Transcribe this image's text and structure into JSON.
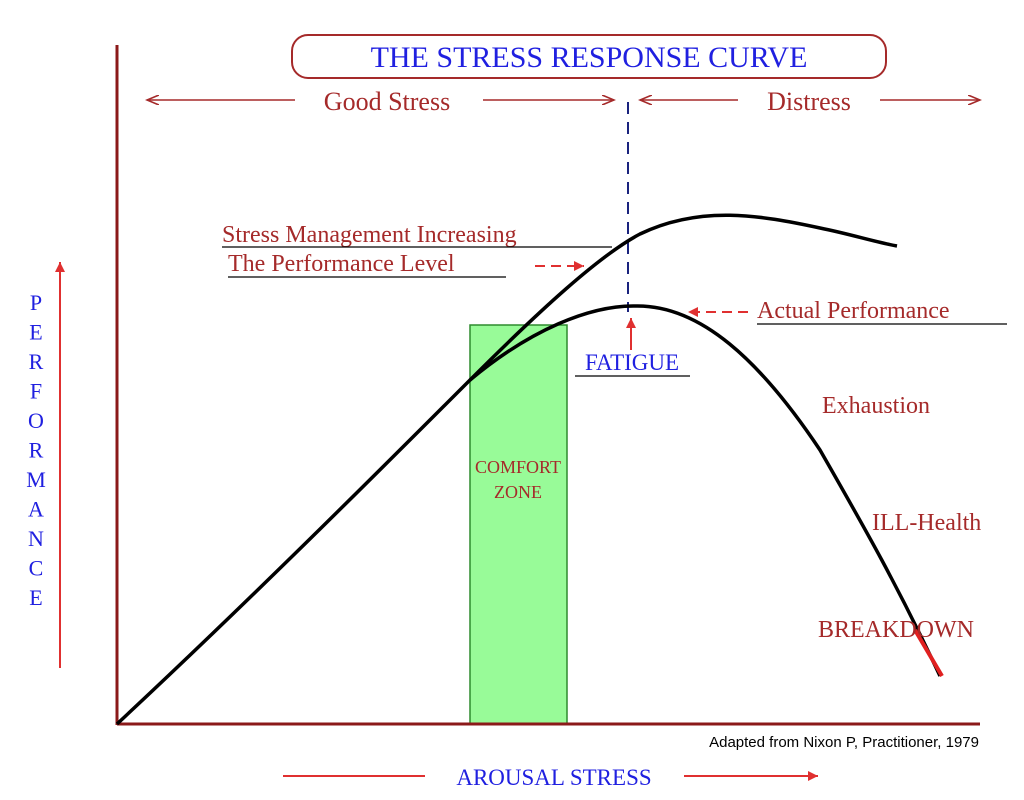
{
  "title": "THE STRESS RESPONSE CURVE",
  "zones": {
    "good_stress": "Good Stress",
    "distress": "Distress"
  },
  "y_axis_label": "PERFORMANCE",
  "x_axis_label": "AROUSAL STRESS",
  "labels": {
    "stress_management_line1": "Stress Management Increasing",
    "stress_management_line2": "The Performance Level",
    "actual_performance": "Actual Performance",
    "fatigue": "FATIGUE",
    "exhaustion": "Exhaustion",
    "ill_health": "ILL-Health",
    "breakdown": "BREAKDOWN",
    "comfort_zone_line1": "COMFORT",
    "comfort_zone_line2": "ZONE"
  },
  "citation": "Adapted from Nixon P, Practitioner, 1979",
  "colors": {
    "axis": "#8b1a1a",
    "text_maroon": "#a52a2a",
    "text_blue": "#2020e0",
    "curve": "#000000",
    "comfort_zone_fill": "#98fb98",
    "comfort_zone_stroke": "#2e8b2e",
    "divider": "#1a237e",
    "breakdown_tail": "#e02020"
  }
}
